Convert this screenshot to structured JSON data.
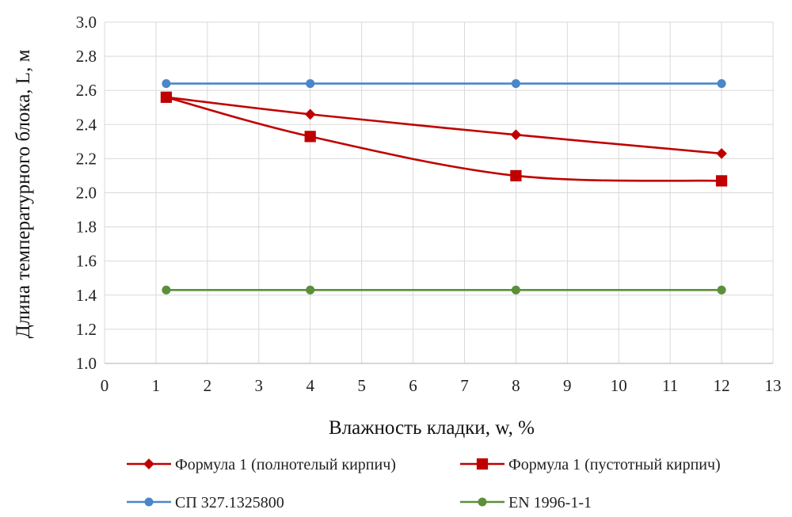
{
  "chart_data": {
    "type": "line",
    "xlabel": "Влажность кладки, w, %",
    "ylabel": "Длина температурного блока, L, м",
    "xlim": [
      0,
      13
    ],
    "ylim": [
      1.0,
      3.0
    ],
    "x_ticks": [
      "0",
      "1",
      "2",
      "3",
      "4",
      "5",
      "6",
      "7",
      "8",
      "9",
      "10",
      "11",
      "12",
      "13"
    ],
    "y_ticks": [
      "1.0",
      "1.2",
      "1.4",
      "1.6",
      "1.8",
      "2.0",
      "2.2",
      "2.4",
      "2.6",
      "2.8",
      "3.0"
    ],
    "grid": true,
    "legend_position": "bottom",
    "series": [
      {
        "name": "Формула 1 (полнотелый кирпич)",
        "color": "#c00000",
        "marker": "diamond",
        "smooth": true,
        "x": [
          1.2,
          4,
          8,
          12
        ],
        "y": [
          2.56,
          2.46,
          2.34,
          2.23
        ]
      },
      {
        "name": "Формула 1 (пустотный кирпич)",
        "color": "#c00000",
        "marker": "square",
        "smooth": true,
        "x": [
          1.2,
          4,
          8,
          12
        ],
        "y": [
          2.56,
          2.33,
          2.1,
          2.07
        ]
      },
      {
        "name": "СП 327.1325800",
        "color": "#4a86c8",
        "marker": "circle",
        "smooth": false,
        "x": [
          1.2,
          4,
          8,
          12
        ],
        "y": [
          2.64,
          2.64,
          2.64,
          2.64
        ]
      },
      {
        "name": "EN 1996-1-1",
        "color": "#5b8f3a",
        "marker": "circle",
        "smooth": false,
        "x": [
          1.2,
          4,
          8,
          12
        ],
        "y": [
          1.43,
          1.43,
          1.43,
          1.43
        ]
      }
    ]
  }
}
